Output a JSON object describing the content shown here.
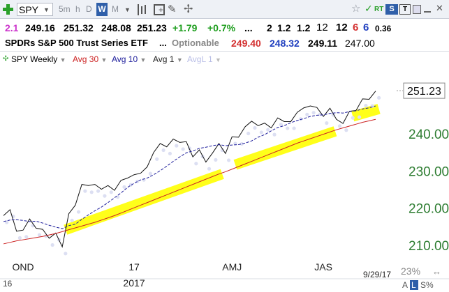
{
  "toolbar": {
    "symbol": "SPY",
    "timeframes": [
      "5m",
      "h",
      "D",
      "W",
      "M"
    ],
    "active_timeframe": "W",
    "dropdown_arrow": "▼",
    "rt_label": "RT",
    "s_label": "S",
    "t_label": "T"
  },
  "quote": {
    "change_index": "2.1",
    "open": "249.16",
    "high": "251.32",
    "low": "248.08",
    "close": "251.23",
    "change": "+1.79",
    "change_pct": "+0.7%",
    "dots": "...",
    "n1": "2",
    "n2": "1.2",
    "n3": "1.2",
    "n4": "12",
    "n5": "12",
    "n6": "6",
    "n7": "6",
    "n8": "0.36"
  },
  "description": {
    "name": "SPDRs S&P 500 Trust Series ETF",
    "dots": "...",
    "optionable": "Optionable",
    "v1": "249.40",
    "v2": "248.32",
    "v3": "249.11",
    "v4": "247.00"
  },
  "legend": {
    "series": "SPY Weekly",
    "ma1": "Avg 30",
    "ma2": "Avg 10",
    "ma3": "Avg 1",
    "ma4": "AvgL 1"
  },
  "colors": {
    "price": "#111111",
    "avg30": "#cc2222",
    "avg10": "#1a1a9a",
    "dots": "#dcdff2",
    "highlight": "#ffff1a",
    "axis_label": "#2e7d32",
    "up": "#1e9e1e",
    "red": "#d32f2f",
    "blue": "#1f3fbf",
    "magenta": "#cc33cc"
  },
  "footer": {
    "date": "9/29/17",
    "pct": "23%",
    "a_label": "A",
    "l_label": "L",
    "s_label": "S%",
    "left_partial": "16"
  },
  "chart_data": {
    "type": "line",
    "ylim": [
      207,
      258
    ],
    "y_ticks": [
      "210.00",
      "220.00",
      "230.00",
      "240.00"
    ],
    "last_price_label": "251.23",
    "x_labels": [
      {
        "week": 3,
        "text": "OND"
      },
      {
        "week": 20,
        "text": "17"
      },
      {
        "week": 35,
        "text": "AMJ"
      },
      {
        "week": 49,
        "text": "JAS"
      }
    ],
    "year_label": {
      "week": 20,
      "text": "2017"
    },
    "series": [
      {
        "name": "SPY Weekly",
        "values": [
          217.8,
          219.4,
          213.6,
          213.9,
          216.9,
          214.4,
          214.1,
          211.7,
          213.1,
          209.4,
          218.3,
          220.6,
          226.2,
          225.9,
          226.2,
          224.9,
          225.9,
          224.6,
          227.3,
          227.9,
          228.8,
          229.2,
          230.9,
          234.8,
          237.2,
          236.3,
          238.4,
          237.5,
          237.7,
          233.6,
          235.5,
          232.2,
          234.6,
          237.2,
          234.5,
          239.0,
          238.9,
          241.7,
          243.2,
          242.0,
          242.7,
          241.4,
          244.1,
          243.1,
          243.1,
          245.6,
          246.8,
          247.3,
          246.9,
          244.5,
          246.7,
          243.7,
          242.6,
          245.9,
          246.1,
          249.2,
          249.1,
          251.3
        ]
      },
      {
        "name": "Avg 10",
        "values": [
          216.2,
          216.6,
          216.7,
          216.5,
          216.2,
          216.3,
          215.8,
          215.2,
          214.7,
          214.3,
          215.1,
          215.5,
          216.8,
          218.0,
          219.1,
          220.1,
          221.3,
          222.6,
          223.9,
          225.4,
          226.5,
          227.4,
          227.9,
          228.8,
          229.9,
          231.1,
          232.4,
          233.6,
          234.7,
          235.2,
          235.9,
          236.2,
          236.6,
          236.9,
          236.6,
          236.8,
          236.9,
          237.3,
          237.9,
          238.9,
          239.6,
          240.6,
          241.5,
          242.0,
          242.8,
          243.4,
          243.9,
          244.5,
          244.8,
          244.9,
          245.3,
          245.5,
          245.4,
          245.8,
          246.0,
          246.5,
          246.8,
          247.3
        ]
      },
      {
        "name": "Avg 30",
        "values": [
          210.2,
          210.6,
          211.0,
          211.3,
          211.6,
          211.9,
          212.2,
          212.6,
          213.0,
          213.5,
          214.0,
          214.5,
          215.0,
          215.5,
          216.0,
          216.6,
          217.2,
          217.8,
          218.5,
          219.2,
          219.9,
          220.6,
          221.3,
          222.0,
          222.7,
          223.4,
          224.1,
          224.8,
          225.5,
          226.2,
          226.9,
          227.6,
          228.3,
          229.0,
          229.6,
          230.3,
          231.0,
          231.7,
          232.4,
          233.1,
          233.8,
          234.5,
          235.2,
          235.9,
          236.6,
          237.3,
          237.9,
          238.5,
          239.1,
          239.7,
          240.3,
          240.9,
          241.4,
          241.9,
          242.4,
          242.9,
          243.3,
          243.7
        ]
      }
    ],
    "highlight_segments": [
      {
        "from_week": 9.5,
        "from_value": 214.0,
        "to_week": 33.5,
        "to_value": 229.0
      },
      {
        "from_week": 35.5,
        "from_value": 231.5,
        "to_week": 50.8,
        "to_value": 240.5
      },
      {
        "from_week": 53.5,
        "from_value": 244.5,
        "to_week": 57.5,
        "to_value": 246.5
      }
    ]
  }
}
